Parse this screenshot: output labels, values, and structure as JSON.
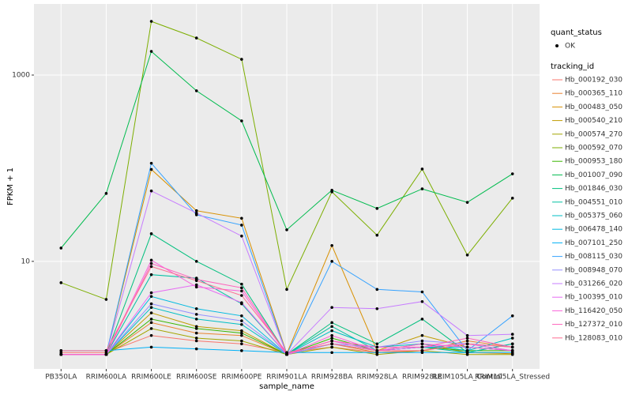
{
  "chart_data": {
    "type": "line",
    "x_label": "sample_name",
    "y_label": "FPKM + 1",
    "log_scale": true,
    "grid": true,
    "categories": [
      "PB350LA",
      "RRIM600LA",
      "RRIM600LE",
      "RRIM600SE",
      "RRIM600PE",
      "RRIM901LA",
      "RRIM928BA",
      "RRIM928LA",
      "RRIM928LE",
      "RRIM105LA_Control",
      "RRIM105LA_Stressed"
    ],
    "ylim": [
      0.7,
      5800
    ],
    "yticks": [
      10,
      1000
    ],
    "legend_titles": [
      "quant_status",
      "tracking_id"
    ],
    "point_legend": "OK",
    "point_color": "#000000",
    "series": [
      {
        "name": "Hb_000192_030",
        "color": "#F8766D",
        "values": [
          1.05,
          1.05,
          1.6,
          1.4,
          1.3,
          1.05,
          1.2,
          1.05,
          1.1,
          1.3,
          1.1
        ]
      },
      {
        "name": "Hb_000365_110",
        "color": "#EA8331",
        "values": [
          1,
          1,
          2.2,
          1.7,
          1.6,
          1,
          1.3,
          1.05,
          1.1,
          1.4,
          1.2
        ]
      },
      {
        "name": "Hb_000483_050",
        "color": "#D89000",
        "values": [
          1,
          1,
          97,
          35,
          29,
          1.02,
          14.8,
          1.1,
          1.3,
          1.05,
          1.02
        ]
      },
      {
        "name": "Hb_000540_210",
        "color": "#C09B00",
        "values": [
          1,
          1,
          2.8,
          2,
          1.8,
          1,
          1.4,
          1.1,
          1.6,
          1.2,
          1.1
        ]
      },
      {
        "name": "Hb_000574_270",
        "color": "#A3A500",
        "values": [
          1,
          1,
          1.9,
          1.5,
          1.4,
          1,
          1.2,
          1,
          1.1,
          1,
          1
        ]
      },
      {
        "name": "Hb_000592_070",
        "color": "#7CAE00",
        "values": [
          5.9,
          3.9,
          3770,
          2500,
          1475,
          5,
          55.7,
          19.1,
          98,
          11.7,
          47.7
        ]
      },
      {
        "name": "Hb_000953_180",
        "color": "#39B600",
        "values": [
          1,
          1,
          2.4,
          1.9,
          1.7,
          1,
          1.5,
          1.1,
          1.2,
          1.1,
          1.1
        ]
      },
      {
        "name": "Hb_001007_090",
        "color": "#00BB4E",
        "values": [
          13.9,
          53.6,
          1795,
          678,
          322,
          21.8,
          58,
          37,
          60,
          43,
          87
        ]
      },
      {
        "name": "Hb_001846_030",
        "color": "#00BF7D",
        "values": [
          1,
          1,
          19.8,
          10,
          5.7,
          1,
          2.2,
          1.3,
          2.4,
          1.05,
          1.3
        ]
      },
      {
        "name": "Hb_004551_010",
        "color": "#00C1A3",
        "values": [
          1,
          1,
          7.2,
          6.6,
          3.5,
          1,
          2,
          1.1,
          1.2,
          1.05,
          1.3
        ]
      },
      {
        "name": "Hb_005375_060",
        "color": "#00BFC4",
        "values": [
          1,
          1,
          3.2,
          2.4,
          2.1,
          1,
          1.8,
          1.2,
          1.3,
          1.1,
          1.5
        ]
      },
      {
        "name": "Hb_006478_140",
        "color": "#00BAE0",
        "values": [
          1,
          1,
          4.2,
          3.1,
          2.6,
          1,
          1.3,
          1.1,
          1.2,
          1.2,
          1.1
        ]
      },
      {
        "name": "Hb_007101_250",
        "color": "#00B0F6",
        "values": [
          1.1,
          1.1,
          1.2,
          1.15,
          1.1,
          1.05,
          1.05,
          1.05,
          1.05,
          1.05,
          1.05
        ]
      },
      {
        "name": "Hb_008115_030",
        "color": "#35A2FF",
        "values": [
          1,
          1,
          113,
          31.6,
          24.5,
          1,
          10,
          5,
          4.7,
          1.1,
          2.6
        ]
      },
      {
        "name": "Hb_008948_070",
        "color": "#9590FF",
        "values": [
          1,
          1,
          3.5,
          2.7,
          2.3,
          1,
          1.3,
          1.2,
          1.4,
          1.3,
          1.2
        ]
      },
      {
        "name": "Hb_031266_020",
        "color": "#C77CFF",
        "values": [
          1,
          1,
          57,
          33,
          18.7,
          1,
          3.2,
          3.1,
          3.7,
          1.6,
          1.65
        ]
      },
      {
        "name": "Hb_100395_010",
        "color": "#E76BF3",
        "values": [
          1,
          1,
          4.6,
          5.6,
          3.6,
          1,
          1.4,
          1.1,
          1.2,
          1.3,
          1.1
        ]
      },
      {
        "name": "Hb_116420_050",
        "color": "#FA62DB",
        "values": [
          1,
          1,
          10.3,
          5.3,
          4.8,
          1,
          1.6,
          1.1,
          1.3,
          1.2,
          1.1
        ]
      },
      {
        "name": "Hb_127372_010",
        "color": "#FF62BC",
        "values": [
          1,
          1,
          9.5,
          6.4,
          5.2,
          1,
          1.4,
          1.2,
          1.2,
          1.5,
          1.2
        ]
      },
      {
        "name": "Hb_128083_010",
        "color": "#FF6C91",
        "values": [
          1.1,
          1.1,
          8.8,
          6.2,
          4.3,
          1.05,
          1.3,
          1.1,
          1.1,
          1.3,
          1.2
        ]
      }
    ]
  }
}
